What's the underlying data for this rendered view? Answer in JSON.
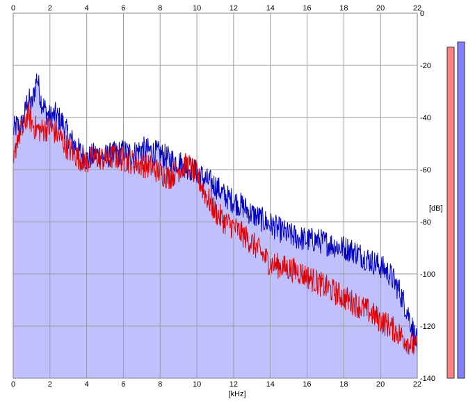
{
  "chart_data": {
    "type": "area",
    "xlabel": "[kHz]",
    "ylabel": "[dB]",
    "xlim": [
      0,
      22
    ],
    "ylim": [
      -140,
      0
    ],
    "x_ticks": [
      "0",
      "2",
      "4",
      "6",
      "8",
      "10",
      "12",
      "14",
      "16",
      "18",
      "20",
      "22"
    ],
    "y_ticks": [
      "0",
      "-20",
      "-40",
      "-60",
      "-80",
      "-100",
      "-120",
      "-140"
    ],
    "grid": true,
    "series": [
      {
        "color": "#0000c0",
        "fill": "#c0c0ff",
        "x": [
          0.0,
          0.2,
          0.4,
          0.6,
          0.8,
          1.0,
          1.2,
          1.3,
          1.5,
          1.8,
          2.0,
          2.3,
          2.7,
          3.0,
          3.5,
          4.0,
          4.5,
          5.0,
          5.5,
          6.0,
          6.5,
          7.0,
          7.5,
          8.0,
          8.5,
          9.0,
          9.5,
          10.0,
          10.5,
          11.0,
          11.5,
          12.0,
          12.5,
          13.0,
          13.5,
          14.0,
          14.5,
          15.0,
          15.5,
          16.0,
          16.5,
          17.0,
          17.5,
          18.0,
          18.5,
          19.0,
          19.5,
          20.0,
          20.5,
          21.0,
          21.5,
          22.0
        ],
        "y": [
          -45,
          -43,
          -44,
          -40,
          -32,
          -36,
          -28,
          -24,
          -33,
          -38,
          -40,
          -39,
          -42,
          -47,
          -52,
          -56,
          -54,
          -55,
          -54,
          -53,
          -54,
          -52,
          -53,
          -54,
          -56,
          -57,
          -59,
          -61,
          -64,
          -66,
          -70,
          -72,
          -74,
          -77,
          -79,
          -81,
          -83,
          -85,
          -86,
          -87,
          -87,
          -88,
          -89,
          -90,
          -91,
          -93,
          -95,
          -97,
          -100,
          -106,
          -115,
          -127
        ]
      },
      {
        "color": "#e00000",
        "x": [
          0.0,
          0.2,
          0.4,
          0.6,
          0.8,
          1.0,
          1.2,
          1.5,
          2.0,
          2.5,
          3.0,
          3.5,
          4.0,
          4.5,
          5.0,
          5.5,
          6.0,
          6.5,
          7.0,
          7.5,
          8.0,
          8.5,
          9.0,
          9.5,
          10.0,
          10.5,
          11.0,
          11.5,
          12.0,
          12.5,
          13.0,
          13.5,
          14.0,
          14.5,
          15.0,
          15.5,
          16.0,
          16.5,
          17.0,
          17.5,
          18.0,
          18.5,
          19.0,
          19.5,
          20.0,
          20.5,
          21.0,
          21.5,
          22.0
        ],
        "y": [
          -60,
          -48,
          -46,
          -44,
          -38,
          -42,
          -44,
          -45,
          -44,
          -47,
          -52,
          -55,
          -57,
          -55,
          -56,
          -55,
          -56,
          -57,
          -58,
          -59,
          -61,
          -63,
          -60,
          -58,
          -62,
          -70,
          -76,
          -80,
          -82,
          -85,
          -88,
          -92,
          -96,
          -97,
          -98,
          -99,
          -101,
          -103,
          -105,
          -107,
          -109,
          -111,
          -113,
          -115,
          -118,
          -120,
          -123,
          -126,
          -129
        ]
      }
    ]
  },
  "meters": [
    {
      "color": "#ff8080",
      "level_db": -13
    },
    {
      "color": "#8080ff",
      "level_db": -11
    }
  ]
}
